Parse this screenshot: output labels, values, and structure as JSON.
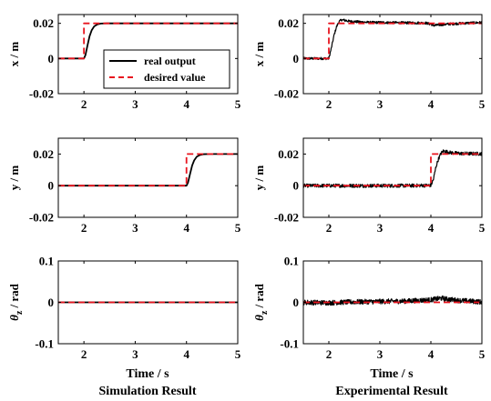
{
  "figure": {
    "bottom_labels": [
      {
        "time": "Time / s",
        "caption": "Simulation Result"
      },
      {
        "time": "Time / s",
        "caption": "Experimental Result"
      }
    ]
  },
  "legend": {
    "entries": [
      {
        "label": "real output",
        "color": "#000000",
        "dash": "solid"
      },
      {
        "label": "desired value",
        "color": "#e8141e",
        "dash": "dashed"
      }
    ]
  },
  "chart_data": [
    {
      "type": "line",
      "panel": "simulation-x",
      "xlabel": "",
      "ylabel": "x / m",
      "xlim": [
        1.5,
        5
      ],
      "ylim": [
        -0.02,
        0.025
      ],
      "xticks": [
        2,
        3,
        4,
        5
      ],
      "yticks": [
        -0.02,
        0,
        0.02
      ],
      "xtick_labels": [
        "2",
        "3",
        "4",
        "5"
      ],
      "ytick_labels": [
        "-0.02",
        "0",
        "0.02"
      ],
      "series": [
        {
          "name": "desired value",
          "style": "dashed",
          "color": "#e8141e",
          "x": [
            1.5,
            2.0,
            2.0,
            5.0
          ],
          "y": [
            0,
            0,
            0.02,
            0.02
          ]
        },
        {
          "name": "real output",
          "style": "solid",
          "color": "#000000",
          "x": [
            1.5,
            2.0,
            2.03,
            2.07,
            2.11,
            2.15,
            2.2,
            2.26,
            2.33,
            2.45,
            5.0
          ],
          "y": [
            0,
            0,
            0.002,
            0.0075,
            0.0127,
            0.016,
            0.0183,
            0.0194,
            0.0199,
            0.02,
            0.02
          ]
        }
      ]
    },
    {
      "type": "line",
      "panel": "experimental-x",
      "xlabel": "",
      "ylabel": "x / m",
      "xlim": [
        1.5,
        5
      ],
      "ylim": [
        -0.02,
        0.025
      ],
      "xticks": [
        2,
        3,
        4,
        5
      ],
      "yticks": [
        -0.02,
        0,
        0.02
      ],
      "xtick_labels": [
        "2",
        "3",
        "4",
        "5"
      ],
      "ytick_labels": [
        "-0.02",
        "0",
        "0.02"
      ],
      "series": [
        {
          "name": "desired value",
          "style": "dashed",
          "color": "#e8141e",
          "x": [
            1.5,
            2.0,
            2.0,
            5.0
          ],
          "y": [
            0,
            0,
            0.02,
            0.02
          ]
        },
        {
          "name": "real output",
          "style": "solid",
          "color": "#000000",
          "x": [
            1.5,
            2.0,
            2.05,
            2.1,
            2.15,
            2.2,
            2.25,
            2.3,
            2.4,
            2.6,
            2.8,
            3.0,
            3.5,
            3.9,
            4.0,
            4.05,
            4.3,
            4.6,
            5.0
          ],
          "y": [
            0,
            0,
            0.006,
            0.013,
            0.018,
            0.021,
            0.022,
            0.0218,
            0.0212,
            0.0208,
            0.0205,
            0.0205,
            0.0203,
            0.0202,
            0.0195,
            0.0188,
            0.0195,
            0.02,
            0.0205
          ],
          "noise": 0.0007
        }
      ]
    },
    {
      "type": "line",
      "panel": "simulation-y",
      "xlabel": "",
      "ylabel": "y / m",
      "xlim": [
        1.5,
        5
      ],
      "ylim": [
        -0.02,
        0.03
      ],
      "xticks": [
        2,
        3,
        4,
        5
      ],
      "yticks": [
        -0.02,
        0,
        0.02
      ],
      "xtick_labels": [
        "2",
        "3",
        "4",
        "5"
      ],
      "ytick_labels": [
        "-0.02",
        "0",
        "0.02"
      ],
      "series": [
        {
          "name": "desired value",
          "style": "dashed",
          "color": "#e8141e",
          "x": [
            1.5,
            4.0,
            4.0,
            5.0
          ],
          "y": [
            0,
            0,
            0.02,
            0.02
          ]
        },
        {
          "name": "real output",
          "style": "solid",
          "color": "#000000",
          "x": [
            1.5,
            4.0,
            4.03,
            4.07,
            4.11,
            4.15,
            4.2,
            4.26,
            4.33,
            4.45,
            5.0
          ],
          "y": [
            0,
            0,
            0.002,
            0.0075,
            0.0127,
            0.016,
            0.0183,
            0.0194,
            0.0199,
            0.02,
            0.02
          ]
        }
      ]
    },
    {
      "type": "line",
      "panel": "experimental-y",
      "xlabel": "",
      "ylabel": "y / m",
      "xlim": [
        1.5,
        5
      ],
      "ylim": [
        -0.02,
        0.03
      ],
      "xticks": [
        2,
        3,
        4,
        5
      ],
      "yticks": [
        -0.02,
        0,
        0.02
      ],
      "xtick_labels": [
        "2",
        "3",
        "4",
        "5"
      ],
      "ytick_labels": [
        "-0.02",
        "0",
        "0.02"
      ],
      "series": [
        {
          "name": "desired value",
          "style": "dashed",
          "color": "#e8141e",
          "x": [
            1.5,
            4.0,
            4.0,
            5.0
          ],
          "y": [
            0,
            0,
            0.02,
            0.02
          ]
        },
        {
          "name": "real output",
          "style": "solid",
          "color": "#000000",
          "x": [
            1.5,
            2.0,
            2.5,
            3.0,
            3.5,
            4.0,
            4.05,
            4.1,
            4.15,
            4.2,
            4.25,
            4.3,
            4.4,
            4.6,
            5.0
          ],
          "y": [
            0,
            0,
            0,
            0,
            0,
            0.0002,
            0.004,
            0.012,
            0.017,
            0.0205,
            0.022,
            0.0215,
            0.0208,
            0.0203,
            0.0202
          ],
          "noise": 0.0011
        }
      ]
    },
    {
      "type": "line",
      "panel": "simulation-theta",
      "xlabel": "Time / s",
      "ylabel": "θz / rad",
      "xlim": [
        1.5,
        5
      ],
      "ylim": [
        -0.1,
        0.1
      ],
      "xticks": [
        2,
        3,
        4,
        5
      ],
      "yticks": [
        -0.1,
        0,
        0.1
      ],
      "xtick_labels": [
        "2",
        "3",
        "4",
        "5"
      ],
      "ytick_labels": [
        "-0.1",
        "0",
        "0.1"
      ],
      "series": [
        {
          "name": "desired value",
          "style": "dashed",
          "color": "#e8141e",
          "x": [
            1.5,
            5.0
          ],
          "y": [
            0,
            0
          ]
        },
        {
          "name": "real output",
          "style": "solid",
          "color": "#000000",
          "x": [
            1.5,
            5.0
          ],
          "y": [
            0,
            0
          ]
        }
      ]
    },
    {
      "type": "line",
      "panel": "experimental-theta",
      "xlabel": "Time / s",
      "ylabel": "θz / rad",
      "xlim": [
        1.5,
        5
      ],
      "ylim": [
        -0.1,
        0.1
      ],
      "xticks": [
        2,
        3,
        4,
        5
      ],
      "yticks": [
        -0.1,
        0,
        0.1
      ],
      "xtick_labels": [
        "2",
        "3",
        "4",
        "5"
      ],
      "ytick_labels": [
        "-0.1",
        "0",
        "0.1"
      ],
      "series": [
        {
          "name": "desired value",
          "style": "dashed",
          "color": "#e8141e",
          "x": [
            1.5,
            5.0
          ],
          "y": [
            0,
            0
          ]
        },
        {
          "name": "real output",
          "style": "solid",
          "color": "#000000",
          "x": [
            1.5,
            2.0,
            2.5,
            3.0,
            3.5,
            4.0,
            4.2,
            4.5,
            5.0
          ],
          "y": [
            0,
            -0.001,
            0.001,
            0.002,
            0.003,
            0.006,
            0.01,
            0.005,
            0.001
          ],
          "noise": 0.006
        }
      ]
    }
  ]
}
